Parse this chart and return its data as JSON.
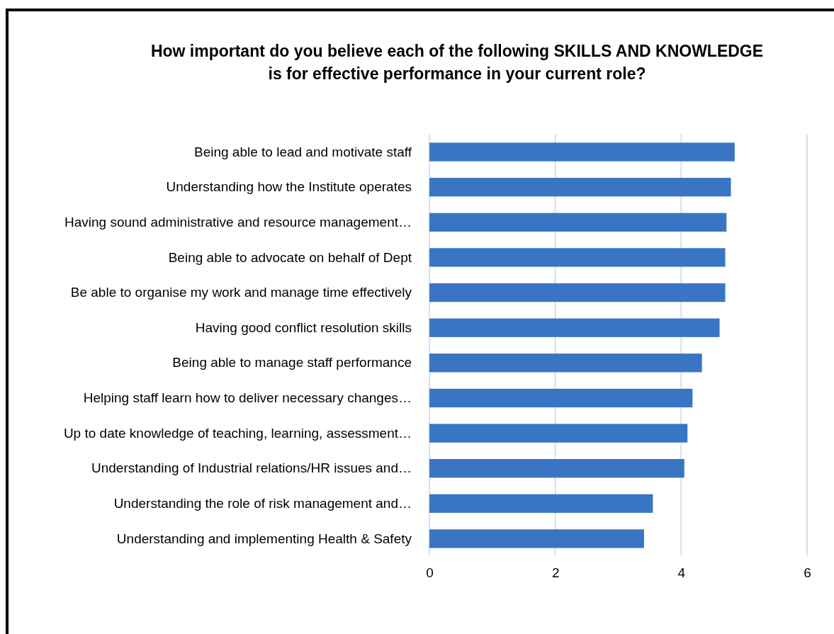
{
  "chart_data": {
    "type": "bar",
    "orientation": "horizontal",
    "title": "How important do you believe each of the following SKILLS AND KNOWLEDGE is for effective performance in your current role?",
    "categories": [
      "Being able to lead and motivate staff",
      "Understanding how the Institute operates",
      "Having sound administrative and resource management…",
      "Being able to advocate on behalf of Dept",
      "Be able to organise my work and manage time effectively",
      "Having good conflict resolution skills",
      "Being able to manage staff performance",
      "Helping staff learn how to deliver necessary changes…",
      "Up to date knowledge of teaching, learning, assessment…",
      "Understanding of Industrial relations/HR issues and…",
      "Understanding the role of risk management and…",
      "Understanding and implementing Health & Safety"
    ],
    "values": [
      4.85,
      4.79,
      4.72,
      4.7,
      4.7,
      4.61,
      4.33,
      4.18,
      4.1,
      4.05,
      3.55,
      3.41
    ],
    "color": "#3a75c4",
    "xlim": [
      0,
      6
    ],
    "xticks": [
      0,
      2,
      4,
      6
    ],
    "grid": "x"
  }
}
